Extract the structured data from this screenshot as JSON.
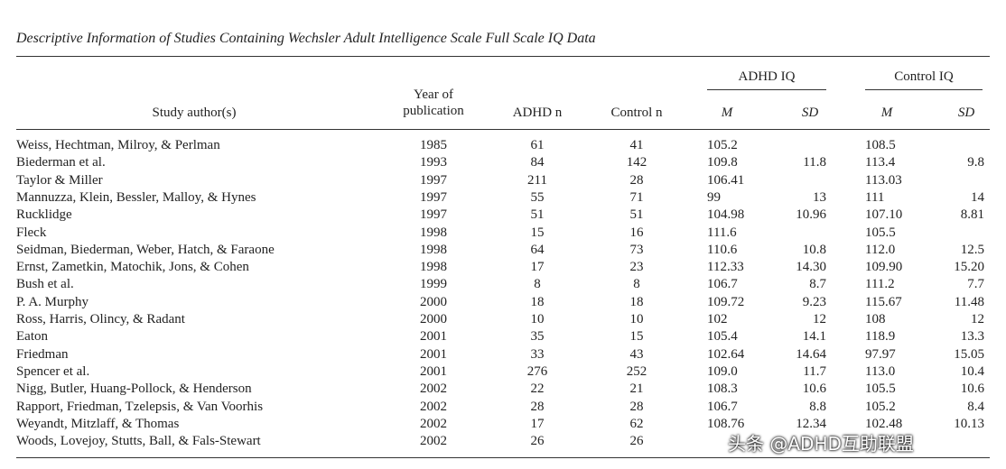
{
  "title": "Descriptive Information of Studies Containing Wechsler Adult Intelligence Scale Full Scale IQ Data",
  "header": {
    "author": "Study author(s)",
    "year": "Year of publication",
    "adhd_n": "ADHD n",
    "control_n": "Control n",
    "adhd_iq": "ADHD IQ",
    "control_iq": "Control IQ",
    "adhd_m": "M",
    "adhd_sd": "SD",
    "control_m": "M",
    "control_sd": "SD"
  },
  "rows": [
    [
      "Weiss, Hechtman, Milroy, & Perlman",
      "1985",
      "61",
      "41",
      "105.2",
      null,
      "108.5",
      null
    ],
    [
      "Biederman et al.",
      "1993",
      "84",
      "142",
      "109.8",
      "11.8",
      "113.4",
      "9.8"
    ],
    [
      "Taylor & Miller",
      "1997",
      "211",
      "28",
      "106.41",
      null,
      "113.03",
      null
    ],
    [
      "Mannuzza, Klein, Bessler, Malloy, & Hynes",
      "1997",
      "55",
      "71",
      "99",
      "13",
      "111",
      "14"
    ],
    [
      "Rucklidge",
      "1997",
      "51",
      "51",
      "104.98",
      "10.96",
      "107.10",
      "8.81"
    ],
    [
      "Fleck",
      "1998",
      "15",
      "16",
      "111.6",
      null,
      "105.5",
      null
    ],
    [
      "Seidman, Biederman, Weber, Hatch, & Faraone",
      "1998",
      "64",
      "73",
      "110.6",
      "10.8",
      "112.0",
      "12.5"
    ],
    [
      "Ernst, Zametkin, Matochik, Jons, & Cohen",
      "1998",
      "17",
      "23",
      "112.33",
      "14.30",
      "109.90",
      "15.20"
    ],
    [
      "Bush et al.",
      "1999",
      "8",
      "8",
      "106.7",
      "8.7",
      "111.2",
      "7.7"
    ],
    [
      "P. A. Murphy",
      "2000",
      "18",
      "18",
      "109.72",
      "9.23",
      "115.67",
      "11.48"
    ],
    [
      "Ross, Harris, Olincy, & Radant",
      "2000",
      "10",
      "10",
      "102",
      "12",
      "108",
      "12"
    ],
    [
      "Eaton",
      "2001",
      "35",
      "15",
      "105.4",
      "14.1",
      "118.9",
      "13.3"
    ],
    [
      "Friedman",
      "2001",
      "33",
      "43",
      "102.64",
      "14.64",
      "97.97",
      "15.05"
    ],
    [
      "Spencer et al.",
      "2001",
      "276",
      "252",
      "109.0",
      "11.7",
      "113.0",
      "10.4"
    ],
    [
      "Nigg, Butler, Huang-Pollock, & Henderson",
      "2002",
      "22",
      "21",
      "108.3",
      "10.6",
      "105.5",
      "10.6"
    ],
    [
      "Rapport, Friedman, Tzelepsis, & Van Voorhis",
      "2002",
      "28",
      "28",
      "106.7",
      "8.8",
      "105.2",
      "8.4"
    ],
    [
      "Weyandt, Mitzlaff, & Thomas",
      "2002",
      "17",
      "62",
      "108.76",
      "12.34",
      "102.48",
      "10.13"
    ],
    [
      "Woods, Lovejoy, Stutts, Ball, & Fals-Stewart",
      "2002",
      "26",
      "26",
      null,
      null,
      null,
      null
    ]
  ],
  "watermark": "头条 @ADHD互助联盟"
}
